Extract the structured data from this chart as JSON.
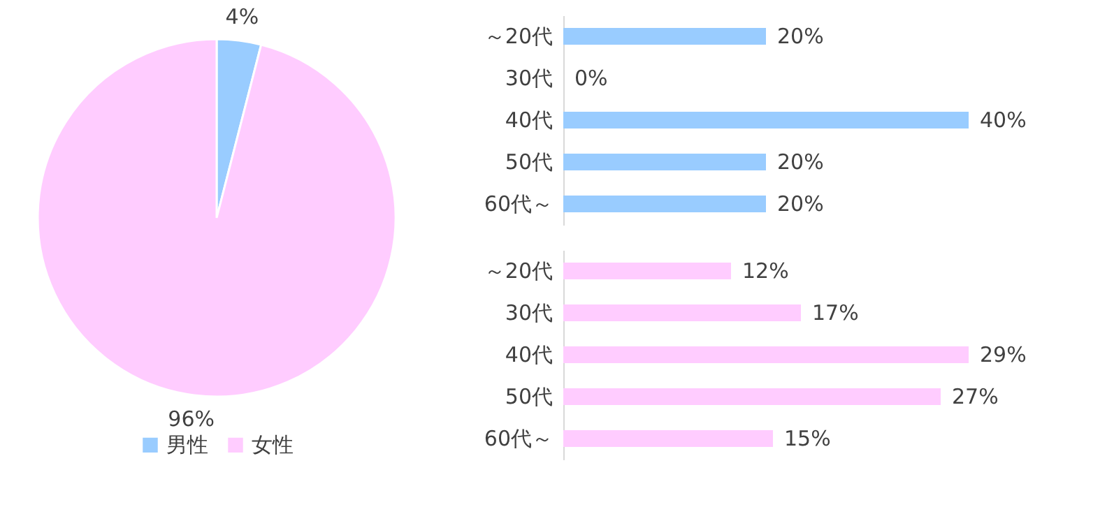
{
  "chart_data": [
    {
      "type": "pie",
      "categories": [
        "男性",
        "女性"
      ],
      "values": [
        4,
        96
      ],
      "colors": [
        "#99ccff",
        "#ffccff"
      ],
      "value_labels": [
        "4%",
        "96%"
      ],
      "legend": "bottom"
    },
    {
      "type": "bar",
      "orientation": "horizontal",
      "categories": [
        "～20代",
        "30代",
        "40代",
        "50代",
        "60代～"
      ],
      "values": [
        20,
        0,
        40,
        20,
        20
      ],
      "color": "#99ccff",
      "value_labels": [
        "20%",
        "0%",
        "40%",
        "20%",
        "20%"
      ]
    },
    {
      "type": "bar",
      "orientation": "horizontal",
      "categories": [
        "～20代",
        "30代",
        "40代",
        "50代",
        "60代～"
      ],
      "values": [
        12,
        17,
        29,
        27,
        15
      ],
      "color": "#ffccff",
      "value_labels": [
        "12%",
        "17%",
        "29%",
        "27%",
        "15%"
      ]
    }
  ]
}
